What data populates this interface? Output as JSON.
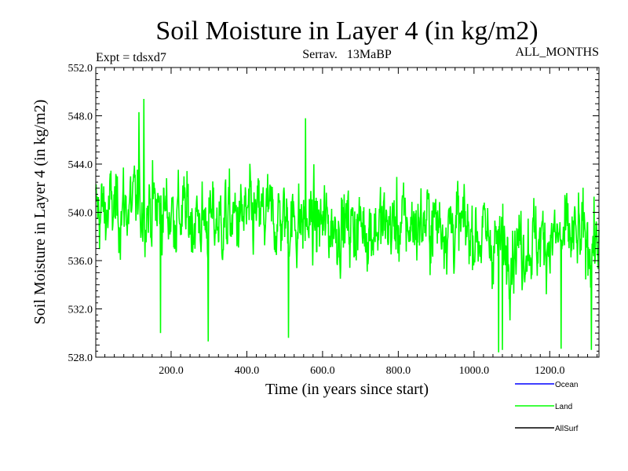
{
  "header": {
    "title": "Soil Moisture in Layer 4 (in kg/m2)",
    "experiment": "Expt = tdsxd7",
    "subtitle": "Serrav.   13MaBP",
    "period": "ALL_MONTHS"
  },
  "chart_data": {
    "type": "line",
    "title": "Soil Moisture in Layer 4 (in kg/m2)",
    "xlabel": "Time (in years since start)",
    "ylabel": "Soil Moisture in Layer 4 (in kg/m2)",
    "xlim": [
      1,
      1330
    ],
    "ylim": [
      528.0,
      552.0
    ],
    "x_ticks": [
      200.0,
      400.0,
      600.0,
      800.0,
      1000.0,
      1200.0
    ],
    "x_tick_labels": [
      "200.0",
      "400.0",
      "600.0",
      "800.0",
      "1000.0",
      "1200.0"
    ],
    "y_ticks": [
      528.0,
      532.0,
      536.0,
      540.0,
      544.0,
      548.0,
      552.0
    ],
    "y_tick_labels": [
      "528.0",
      "532.0",
      "536.0",
      "540.0",
      "544.0",
      "548.0",
      "552.0"
    ],
    "legend": [
      {
        "name": "Ocean",
        "color": "#0000ff"
      },
      {
        "name": "Land",
        "color": "#00ff00"
      },
      {
        "name": "AllSurf",
        "color": "#000000"
      }
    ],
    "series": [
      {
        "name": "Land",
        "color": "#00ff00",
        "description": "high-frequency annual series, mean about 539-540, range roughly 528.5-549.5",
        "mean_trend": [
          [
            1,
            540.0
          ],
          [
            130,
            540.6
          ],
          [
            300,
            539.2
          ],
          [
            450,
            539.6
          ],
          [
            600,
            539.0
          ],
          [
            760,
            538.8
          ],
          [
            900,
            539.2
          ],
          [
            1000,
            538.4
          ],
          [
            1080,
            537.2
          ],
          [
            1200,
            537.8
          ],
          [
            1330,
            537.6
          ]
        ],
        "amplitude": 3.2,
        "extremes": [
          [
            128,
            549.4
          ],
          [
            115,
            548.3
          ],
          [
            555,
            547.8
          ],
          [
            298,
            529.3
          ],
          [
            1065,
            528.4
          ],
          [
            1075,
            528.6
          ],
          [
            1230,
            528.7
          ],
          [
            1310,
            528.6
          ],
          [
            510,
            529.6
          ],
          [
            172,
            530.0
          ]
        ]
      }
    ]
  }
}
